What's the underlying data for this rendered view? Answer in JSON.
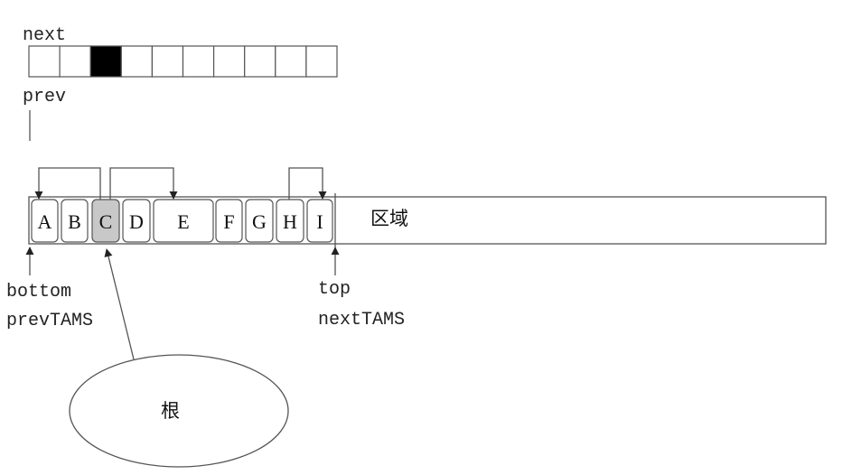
{
  "bitmap": {
    "next_label": "next",
    "prev_label": "prev",
    "cells": [
      false,
      false,
      true,
      false,
      false,
      false,
      false,
      false,
      false,
      false
    ]
  },
  "objects": [
    {
      "label": "A",
      "marked": false
    },
    {
      "label": "B",
      "marked": false
    },
    {
      "label": "C",
      "marked": true
    },
    {
      "label": "D",
      "marked": false
    },
    {
      "label": "E",
      "marked": false
    },
    {
      "label": "F",
      "marked": false
    },
    {
      "label": "G",
      "marked": false
    },
    {
      "label": "H",
      "marked": false
    },
    {
      "label": "I",
      "marked": false
    }
  ],
  "references": [
    {
      "from": "C",
      "to": "A"
    },
    {
      "from": "C",
      "to": "E"
    },
    {
      "from": "H",
      "to": "I"
    }
  ],
  "region_label": "区域",
  "pointers": {
    "bottom": "bottom",
    "prev_tams": "prevTAMS",
    "top": "top",
    "next_tams": "nextTAMS"
  },
  "root_label": "根",
  "colors": {
    "line": "#555555",
    "marked_fill": "#c8c8c8",
    "bitmap_mark": "#000000",
    "background": "#ffffff"
  }
}
